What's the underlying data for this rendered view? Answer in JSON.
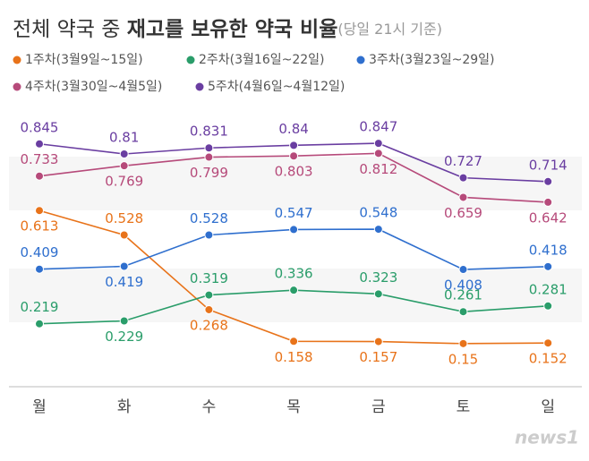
{
  "chart_data": {
    "type": "line",
    "title": [
      "전체 약국 중",
      "재고를 보유한 약국 비율"
    ],
    "subtitle": "(당일 21시 기준)",
    "categories": [
      "월",
      "화",
      "수",
      "목",
      "금",
      "토",
      "일"
    ],
    "ylim": [
      0,
      1
    ],
    "series": [
      {
        "name": "1주차(3월9일~15일)",
        "color": "#e8731a",
        "values": [
          0.613,
          0.528,
          0.268,
          0.158,
          0.157,
          0.15,
          0.152
        ]
      },
      {
        "name": "2주차(3월16일~22일)",
        "color": "#2a9d6a",
        "values": [
          0.219,
          0.229,
          0.319,
          0.336,
          0.323,
          0.261,
          0.281
        ]
      },
      {
        "name": "3주차(3월23일~29일)",
        "color": "#2f6fce",
        "values": [
          0.409,
          0.419,
          0.528,
          0.547,
          0.548,
          0.408,
          0.418
        ]
      },
      {
        "name": "4주차(3월30일~4월5일)",
        "color": "#b64a7a",
        "values": [
          0.733,
          0.769,
          0.799,
          0.803,
          0.812,
          0.659,
          0.642
        ]
      },
      {
        "name": "5주차(4월6일~4월12일)",
        "color": "#6a3ea1",
        "values": [
          0.845,
          0.81,
          0.831,
          0.84,
          0.847,
          0.727,
          0.714
        ]
      }
    ],
    "watermark": "news1"
  }
}
